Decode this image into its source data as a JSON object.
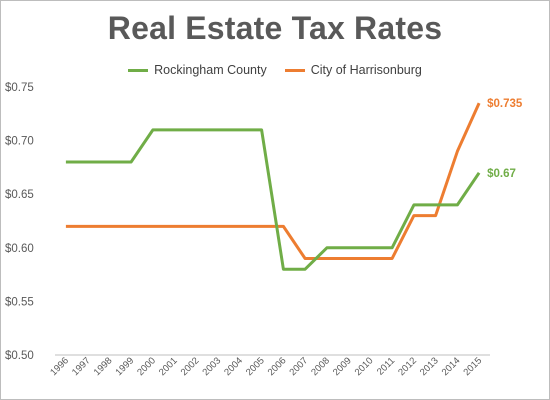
{
  "chart_data": {
    "type": "line",
    "title": "Real Estate Tax Rates",
    "xlabel": "",
    "ylabel": "",
    "x": [
      "1996",
      "1997",
      "1998",
      "1999",
      "2000",
      "2001",
      "2002",
      "2003",
      "2004",
      "2005",
      "2006",
      "2007",
      "2008",
      "2009",
      "2010",
      "2011",
      "2012",
      "2013",
      "2014",
      "2015"
    ],
    "ylim": [
      0.5,
      0.75
    ],
    "yticks": [
      "$0.50",
      "$0.55",
      "$0.60",
      "$0.65",
      "$0.70",
      "$0.75"
    ],
    "ytick_values": [
      0.5,
      0.55,
      0.6,
      0.65,
      0.7,
      0.75
    ],
    "grid": false,
    "legend_position": "top-center",
    "series": [
      {
        "name": "Rockingham County",
        "color": "#70ad47",
        "values": [
          0.68,
          0.68,
          0.68,
          0.68,
          0.71,
          0.71,
          0.71,
          0.71,
          0.71,
          0.71,
          0.58,
          0.58,
          0.6,
          0.6,
          0.6,
          0.6,
          0.64,
          0.64,
          0.64,
          0.67
        ],
        "end_label": "$0.67"
      },
      {
        "name": "City of Harrisonburg",
        "color": "#ed7d31",
        "values": [
          0.62,
          0.62,
          0.62,
          0.62,
          0.62,
          0.62,
          0.62,
          0.62,
          0.62,
          0.62,
          0.62,
          0.59,
          0.59,
          0.59,
          0.59,
          0.59,
          0.63,
          0.63,
          0.69,
          0.735
        ],
        "end_label": "$0.735"
      }
    ]
  }
}
